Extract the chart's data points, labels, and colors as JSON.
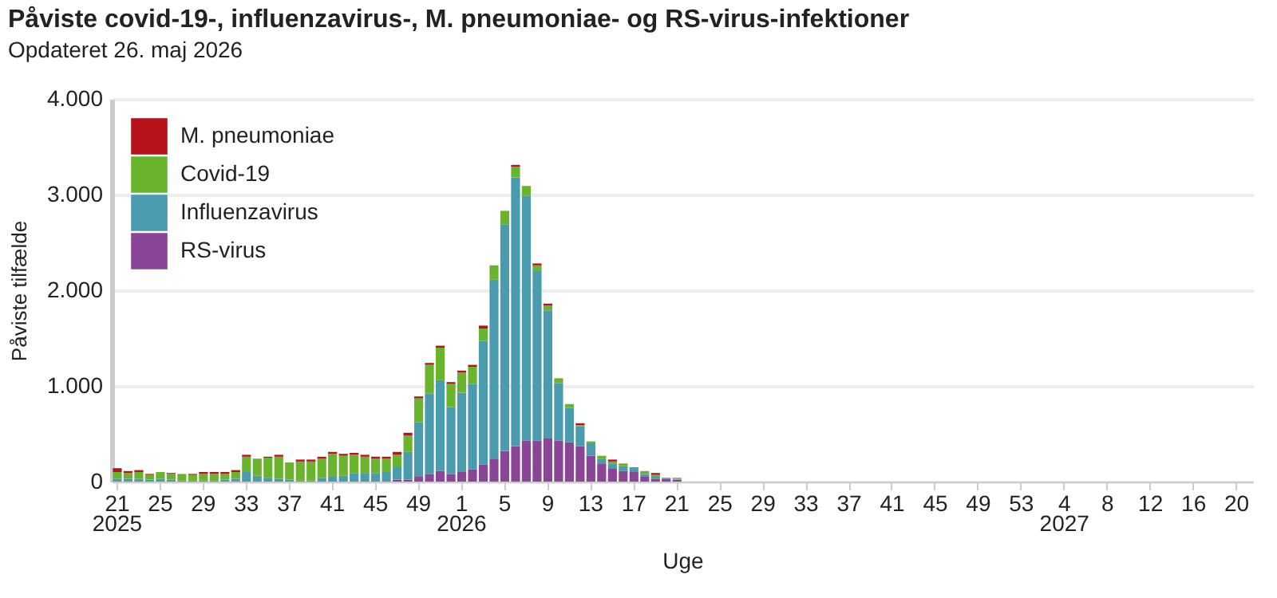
{
  "chart_data": {
    "type": "bar",
    "stacked": true,
    "title": "Påviste covid-19-, influenzavirus-, M. pneumoniae- og RS-virus-infektioner",
    "subtitle": "Opdateret 26. maj 2026",
    "xlabel": "Uge",
    "ylabel": "Påviste tilfælde",
    "categories": [
      "21",
      null,
      null,
      null,
      "25",
      null,
      null,
      null,
      "29",
      null,
      null,
      null,
      "33",
      null,
      null,
      null,
      "37",
      null,
      null,
      null,
      "41",
      null,
      null,
      null,
      "45",
      null,
      null,
      null,
      "49",
      null,
      null,
      null,
      "1",
      null,
      null,
      null,
      "5",
      null,
      null,
      null,
      "9",
      null,
      null,
      null,
      "13",
      null,
      null,
      null,
      "17",
      null,
      null,
      null,
      "21",
      null,
      null,
      null,
      "25",
      null,
      null,
      null,
      "29",
      null,
      null,
      null,
      "33",
      null,
      null,
      null,
      "37",
      null,
      null,
      null,
      "41",
      null,
      null,
      null,
      "45",
      null,
      null,
      null,
      "49",
      null,
      null,
      null,
      "53",
      null,
      null,
      null,
      "4",
      null,
      null,
      null,
      "8",
      null,
      null,
      null,
      "12",
      null,
      null,
      null,
      "16",
      null,
      null,
      null,
      "20",
      null
    ],
    "series": [
      {
        "name": "RS-virus",
        "color": "#8a4596",
        "values": [
          0,
          0,
          0,
          0,
          0,
          0,
          0,
          0,
          0,
          0,
          0,
          0,
          0,
          0,
          0,
          0,
          0,
          0,
          0,
          0,
          0,
          0,
          0,
          0,
          0,
          0,
          20,
          20,
          50,
          80,
          110,
          80,
          100,
          130,
          180,
          240,
          320,
          370,
          430,
          430,
          450,
          430,
          410,
          370,
          270,
          190,
          140,
          110,
          100,
          50,
          30,
          30,
          20,
          null,
          null,
          null,
          null,
          null,
          null,
          null,
          null,
          null,
          null,
          null,
          null,
          null,
          null,
          null,
          null,
          null,
          null,
          null,
          null,
          null,
          null,
          null,
          null,
          null,
          null,
          null,
          null,
          null,
          null,
          null,
          null,
          null,
          null,
          null,
          null,
          null,
          null,
          null,
          null,
          null,
          null,
          null,
          null,
          null,
          null,
          null,
          null,
          null,
          null,
          null,
          null,
          null
        ]
      },
      {
        "name": "Influenzavirus",
        "color": "#4a9bad",
        "values": [
          30,
          30,
          30,
          20,
          30,
          20,
          10,
          10,
          10,
          10,
          20,
          30,
          100,
          60,
          40,
          30,
          20,
          10,
          10,
          40,
          50,
          60,
          90,
          90,
          90,
          100,
          130,
          290,
          570,
          840,
          950,
          700,
          830,
          890,
          1290,
          1870,
          2370,
          2810,
          2560,
          1770,
          1340,
          600,
          360,
          210,
          130,
          50,
          50,
          50,
          50,
          30,
          20,
          10,
          10,
          null,
          null,
          null,
          null,
          null,
          null,
          null,
          null,
          null,
          null,
          null,
          null,
          null,
          null,
          null,
          null,
          null,
          null,
          null,
          null,
          null,
          null,
          null,
          null,
          null,
          null,
          null,
          null,
          null,
          null,
          null,
          null,
          null,
          null,
          null,
          null,
          null,
          null,
          null,
          null,
          null,
          null,
          null,
          null,
          null,
          null,
          null,
          null,
          null,
          null,
          null,
          null,
          null
        ]
      },
      {
        "name": "Covid-19",
        "color": "#6ab42d",
        "values": [
          70,
          60,
          70,
          50,
          70,
          60,
          70,
          60,
          70,
          70,
          60,
          70,
          160,
          180,
          210,
          230,
          180,
          200,
          200,
          200,
          240,
          210,
          190,
          170,
          150,
          140,
          130,
          170,
          250,
          300,
          340,
          240,
          210,
          180,
          130,
          150,
          140,
          110,
          100,
          60,
          50,
          50,
          40,
          10,
          20,
          30,
          20,
          30,
          0,
          30,
          20,
          0,
          10,
          null,
          null,
          null,
          null,
          null,
          null,
          null,
          null,
          null,
          null,
          null,
          null,
          null,
          null,
          null,
          null,
          null,
          null,
          null,
          null,
          null,
          null,
          null,
          null,
          null,
          null,
          null,
          null,
          null,
          null,
          null,
          null,
          null,
          null,
          null,
          null,
          null,
          null,
          null,
          null,
          null,
          null,
          null,
          null,
          null,
          null,
          null,
          null,
          null,
          null,
          null,
          null,
          null
        ]
      },
      {
        "name": "M. pneumoniae",
        "color": "#b5121b",
        "values": [
          40,
          20,
          20,
          10,
          0,
          10,
          0,
          10,
          20,
          20,
          20,
          20,
          20,
          0,
          10,
          20,
          0,
          20,
          20,
          20,
          20,
          20,
          20,
          20,
          20,
          20,
          30,
          30,
          20,
          20,
          20,
          20,
          20,
          20,
          30,
          0,
          0,
          20,
          0,
          20,
          20,
          0,
          0,
          20,
          0,
          0,
          20,
          0,
          0,
          0,
          20,
          0,
          0,
          null,
          null,
          null,
          null,
          null,
          null,
          null,
          null,
          null,
          null,
          null,
          null,
          null,
          null,
          null,
          null,
          null,
          null,
          null,
          null,
          null,
          null,
          null,
          null,
          null,
          null,
          null,
          null,
          null,
          null,
          null,
          null,
          null,
          null,
          null,
          null,
          null,
          null,
          null,
          null,
          null,
          null,
          null,
          null,
          null,
          null,
          null,
          null,
          null,
          null,
          null,
          null,
          null
        ]
      }
    ],
    "ylim": [
      0,
      4000
    ],
    "yticks": [
      0,
      {
        "value": 1000,
        "label": "1.000"
      },
      {
        "value": 2000,
        "label": "2.000"
      },
      {
        "value": 3000,
        "label": "3.000"
      },
      {
        "value": 4000,
        "label": "4.000"
      }
    ],
    "grid": "y",
    "legend": "top left",
    "annotations": [
      "2025",
      "2026",
      "2027"
    ]
  }
}
